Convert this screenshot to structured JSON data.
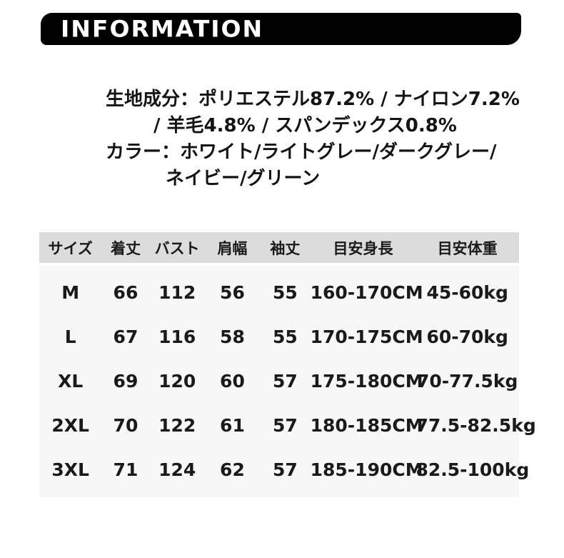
{
  "banner": {
    "title": "INFORMATION",
    "bg_color": "#000000",
    "text_color": "#ffffff"
  },
  "product_info": {
    "lines": [
      "生地成分：ポリエステル87.2% / ナイロン7.2%",
      "/ 羊毛4.8% / スパンデックス0.8%",
      "カラー：ホワイト/ライトグレー/ダークグレー/",
      "ネイビー/グリーン"
    ]
  },
  "size_table": {
    "header_bg_color": "#dcdcdc",
    "body_bg_color": "#f7f7f7",
    "text_color": "#1a1a1a",
    "columns": [
      "サイズ",
      "着丈",
      "バスト",
      "肩幅",
      "袖丈",
      "目安身長",
      "目安体重"
    ],
    "rows": [
      [
        "M",
        "66",
        "112",
        "56",
        "55",
        "160-170CM",
        "45-60kg"
      ],
      [
        "L",
        "67",
        "116",
        "58",
        "55",
        "170-175CM",
        "60-70kg"
      ],
      [
        "XL",
        "69",
        "120",
        "60",
        "57",
        "175-180CM",
        "70-77.5kg"
      ],
      [
        "2XL",
        "70",
        "122",
        "61",
        "57",
        "180-185CM",
        "77.5-82.5kg"
      ],
      [
        "3XL",
        "71",
        "124",
        "62",
        "57",
        "185-190CM",
        "82.5-100kg"
      ]
    ]
  }
}
